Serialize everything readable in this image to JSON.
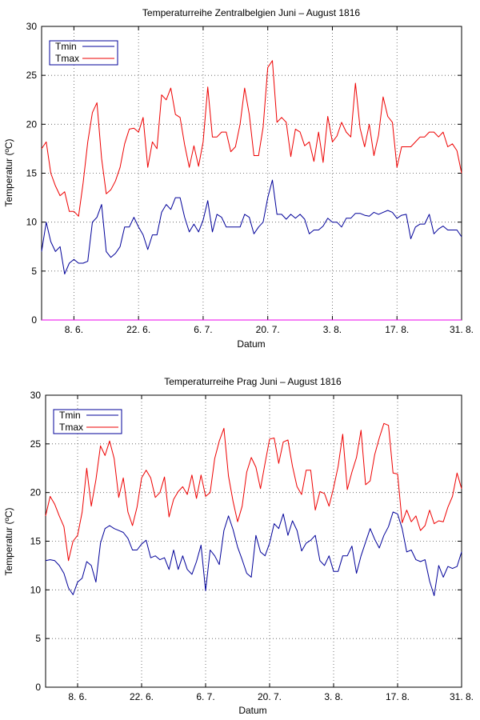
{
  "charts": [
    {
      "title": "Temperaturreihe Zentralbelgien Juni – August 1816",
      "xlabel": "Datum",
      "ylabel": "Temperatur (ºC)",
      "ylim": [
        0,
        30
      ],
      "yticks": [
        0,
        5,
        10,
        15,
        20,
        25,
        30
      ],
      "xlim": [
        1,
        92
      ],
      "xticks": [
        {
          "day": 8,
          "label": "8. 6."
        },
        {
          "day": 22,
          "label": "22. 6."
        },
        {
          "day": 36,
          "label": "6. 7."
        },
        {
          "day": 50,
          "label": "20. 7."
        },
        {
          "day": 64,
          "label": "3. 8."
        },
        {
          "day": 78,
          "label": "17. 8."
        },
        {
          "day": 92,
          "label": "31. 8."
        }
      ],
      "legend": [
        {
          "name": "Tmin",
          "color": "#000099"
        },
        {
          "name": "Tmax",
          "color": "#ee0000"
        }
      ]
    },
    {
      "title": "Temperaturreihe Prag Juni – August 1816",
      "xlabel": "Datum",
      "ylabel": "Temperatur (ºC)",
      "ylim": [
        0,
        30
      ],
      "yticks": [
        0,
        5,
        10,
        15,
        20,
        25,
        30
      ],
      "xlim": [
        1,
        92
      ],
      "xticks": [
        {
          "day": 8,
          "label": "8. 6."
        },
        {
          "day": 22,
          "label": "22. 6."
        },
        {
          "day": 36,
          "label": "6. 7."
        },
        {
          "day": 50,
          "label": "20. 7."
        },
        {
          "day": 64,
          "label": "3. 8."
        },
        {
          "day": 78,
          "label": "17. 8."
        },
        {
          "day": 92,
          "label": "31. 8."
        }
      ],
      "legend": [
        {
          "name": "Tmin",
          "color": "#000099"
        },
        {
          "name": "Tmax",
          "color": "#ee0000"
        }
      ]
    }
  ],
  "chart_data": [
    {
      "type": "line",
      "title": "Temperaturreihe Zentralbelgien Juni – August 1816",
      "xlabel": "Datum",
      "ylabel": "Temperatur (ºC)",
      "ylim": [
        0,
        30
      ],
      "x_unit": "day index (1 = 1. 6. 1816)",
      "x": [
        1,
        2,
        3,
        4,
        5,
        6,
        7,
        8,
        9,
        10,
        11,
        12,
        13,
        14,
        15,
        16,
        17,
        18,
        19,
        20,
        21,
        22,
        23,
        24,
        25,
        26,
        27,
        28,
        29,
        30,
        31,
        32,
        33,
        34,
        35,
        36,
        37,
        38,
        39,
        40,
        41,
        42,
        43,
        44,
        45,
        46,
        47,
        48,
        49,
        50,
        51,
        52,
        53,
        54,
        55,
        56,
        57,
        58,
        59,
        60,
        61,
        62,
        63,
        64,
        65,
        66,
        67,
        68,
        69,
        70,
        71,
        72,
        73,
        74,
        75,
        76,
        77,
        78,
        79,
        80,
        81,
        82,
        83,
        84,
        85,
        86,
        87,
        88,
        89,
        90,
        91,
        92
      ],
      "series": [
        {
          "name": "Tmin",
          "color": "#000099",
          "values": [
            7.0,
            10.0,
            8.0,
            7.0,
            7.5,
            4.7,
            5.8,
            6.2,
            5.8,
            5.8,
            6.0,
            10.0,
            10.5,
            11.8,
            7.0,
            6.4,
            6.8,
            7.5,
            9.5,
            9.5,
            10.5,
            9.5,
            8.7,
            7.2,
            8.7,
            8.7,
            11.0,
            11.8,
            11.3,
            12.5,
            12.5,
            10.5,
            9.0,
            9.8,
            9.0,
            10.2,
            12.2,
            9.0,
            10.8,
            10.5,
            9.5,
            9.5,
            9.5,
            9.5,
            10.8,
            10.5,
            8.8,
            9.5,
            10.0,
            12.5,
            14.3,
            10.8,
            10.8,
            10.3,
            10.8,
            10.4,
            10.8,
            10.3,
            8.8,
            9.2,
            9.2,
            9.6,
            10.4,
            10.0,
            10.0,
            9.5,
            10.4,
            10.4,
            10.9,
            10.9,
            10.7,
            10.6,
            11.0,
            10.8,
            11.0,
            11.2,
            11.0,
            10.4,
            10.7,
            10.8,
            8.3,
            9.5,
            9.8,
            9.8,
            10.8,
            8.8,
            9.3,
            9.6,
            9.2,
            9.2,
            9.2,
            8.5
          ]
        },
        {
          "name": "Tmax",
          "color": "#ee0000",
          "values": [
            17.5,
            18.2,
            15.0,
            13.7,
            12.7,
            13.1,
            11.1,
            11.1,
            10.6,
            14.0,
            18.2,
            21.2,
            22.2,
            16.5,
            12.9,
            13.3,
            14.2,
            15.6,
            18.0,
            19.5,
            19.6,
            19.2,
            20.7,
            15.6,
            18.2,
            17.5,
            23.0,
            22.5,
            23.7,
            21.0,
            20.7,
            17.9,
            15.6,
            17.8,
            15.7,
            18.2,
            23.8,
            18.7,
            18.7,
            19.2,
            19.2,
            17.2,
            17.7,
            20.0,
            23.7,
            21.0,
            16.8,
            16.8,
            19.7,
            25.8,
            26.5,
            20.2,
            20.7,
            20.2,
            16.7,
            19.5,
            19.2,
            17.8,
            18.2,
            16.2,
            19.2,
            16.1,
            20.8,
            18.2,
            18.8,
            20.2,
            19.2,
            18.7,
            24.2,
            19.6,
            17.7,
            20.0,
            16.8,
            18.9,
            22.8,
            20.8,
            20.2,
            15.6,
            17.7,
            17.7,
            17.7,
            18.2,
            18.7,
            18.7,
            19.2,
            19.2,
            18.7,
            19.2,
            17.7,
            18.0,
            17.3,
            15.0
          ]
        }
      ]
    },
    {
      "type": "line",
      "title": "Temperaturreihe Prag Juni – August 1816",
      "xlabel": "Datum",
      "ylabel": "Temperatur (ºC)",
      "ylim": [
        0,
        30
      ],
      "x_unit": "day index (1 = 1. 6. 1816)",
      "x": [
        1,
        2,
        3,
        4,
        5,
        6,
        7,
        8,
        9,
        10,
        11,
        12,
        13,
        14,
        15,
        16,
        17,
        18,
        19,
        20,
        21,
        22,
        23,
        24,
        25,
        26,
        27,
        28,
        29,
        30,
        31,
        32,
        33,
        34,
        35,
        36,
        37,
        38,
        39,
        40,
        41,
        42,
        43,
        44,
        45,
        46,
        47,
        48,
        49,
        50,
        51,
        52,
        53,
        54,
        55,
        56,
        57,
        58,
        59,
        60,
        61,
        62,
        63,
        64,
        65,
        66,
        67,
        68,
        69,
        70,
        71,
        72,
        73,
        74,
        75,
        76,
        77,
        78,
        79,
        80,
        81,
        82,
        83,
        84,
        85,
        86,
        87,
        88,
        89,
        90,
        91,
        92
      ],
      "series": [
        {
          "name": "Tmin",
          "color": "#000099",
          "values": [
            13.0,
            13.1,
            13.0,
            12.5,
            11.7,
            10.2,
            9.5,
            10.8,
            11.2,
            12.9,
            12.5,
            10.8,
            14.8,
            16.3,
            16.6,
            16.3,
            16.1,
            15.9,
            15.3,
            14.1,
            14.1,
            14.7,
            15.1,
            13.3,
            13.5,
            13.1,
            13.3,
            12.1,
            14.1,
            12.1,
            13.5,
            12.1,
            11.6,
            12.9,
            14.6,
            9.9,
            14.1,
            13.5,
            12.6,
            16.1,
            17.6,
            16.2,
            14.4,
            13.1,
            11.7,
            11.3,
            15.6,
            13.9,
            13.5,
            14.8,
            16.8,
            16.3,
            17.8,
            15.6,
            17.1,
            16.1,
            14.0,
            14.8,
            15.1,
            15.6,
            13.0,
            12.5,
            13.5,
            11.9,
            11.9,
            13.5,
            13.5,
            14.5,
            11.7,
            13.5,
            14.9,
            16.3,
            15.2,
            14.3,
            15.6,
            16.5,
            18.0,
            17.8,
            16.3,
            13.9,
            14.1,
            13.1,
            12.9,
            13.1,
            10.9,
            9.4,
            12.5,
            11.3,
            12.4,
            12.2,
            12.4,
            13.9
          ]
        },
        {
          "name": "Tmax",
          "color": "#ee0000",
          "values": [
            17.6,
            19.6,
            18.8,
            17.6,
            16.5,
            13.0,
            15.0,
            15.6,
            18.0,
            22.5,
            18.6,
            21.3,
            24.8,
            23.8,
            25.3,
            23.5,
            19.5,
            21.5,
            18.0,
            16.6,
            18.5,
            21.5,
            22.3,
            21.5,
            19.5,
            20.0,
            21.6,
            17.5,
            19.3,
            20.1,
            20.6,
            19.8,
            21.8,
            19.4,
            21.8,
            19.6,
            20.0,
            23.5,
            25.3,
            26.6,
            21.7,
            19.1,
            17.0,
            18.6,
            22.1,
            23.6,
            22.6,
            20.4,
            23.0,
            25.5,
            25.6,
            23.0,
            25.2,
            25.4,
            22.7,
            20.6,
            19.8,
            22.3,
            22.3,
            18.2,
            20.1,
            19.9,
            18.6,
            20.5,
            22.7,
            26.0,
            20.3,
            22.1,
            23.6,
            26.4,
            20.8,
            21.2,
            23.9,
            25.6,
            27.1,
            26.9,
            22.0,
            21.9,
            16.9,
            18.2,
            17.0,
            17.6,
            16.1,
            16.6,
            18.2,
            16.8,
            17.1,
            17.0,
            18.5,
            19.6,
            22.0,
            20.4
          ]
        }
      ]
    }
  ]
}
